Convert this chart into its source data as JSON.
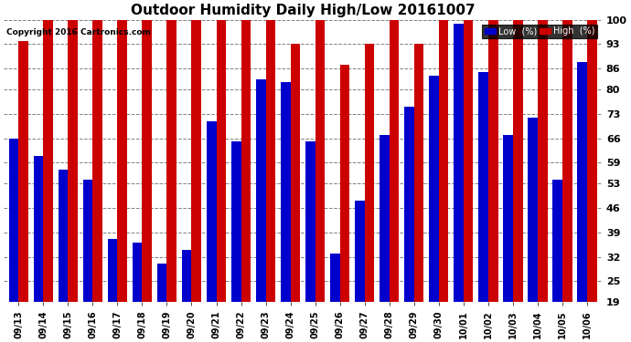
{
  "title": "Outdoor Humidity Daily High/Low 20161007",
  "copyright": "Copyright 2016 Cartronics.com",
  "legend_low": "Low  (%)",
  "legend_high": "High  (%)",
  "low_color": "#0000cc",
  "high_color": "#cc0000",
  "background_color": "#ffffff",
  "ylim": [
    19,
    100
  ],
  "ymin": 19,
  "yticks": [
    19,
    25,
    32,
    39,
    46,
    53,
    59,
    66,
    73,
    80,
    86,
    93,
    100
  ],
  "dates": [
    "09/13",
    "09/14",
    "09/15",
    "09/16",
    "09/17",
    "09/18",
    "09/19",
    "09/20",
    "09/21",
    "09/22",
    "09/23",
    "09/24",
    "09/25",
    "09/26",
    "09/27",
    "09/28",
    "09/29",
    "09/30",
    "10/01",
    "10/02",
    "10/03",
    "10/04",
    "10/05",
    "10/06"
  ],
  "high_values": [
    94,
    100,
    100,
    100,
    100,
    100,
    100,
    100,
    100,
    100,
    100,
    93,
    100,
    87,
    93,
    100,
    93,
    100,
    100,
    100,
    100,
    100,
    100,
    100
  ],
  "low_values": [
    66,
    61,
    57,
    54,
    37,
    36,
    30,
    34,
    71,
    65,
    83,
    82,
    65,
    33,
    48,
    67,
    75,
    84,
    99,
    85,
    67,
    72,
    54,
    88
  ]
}
